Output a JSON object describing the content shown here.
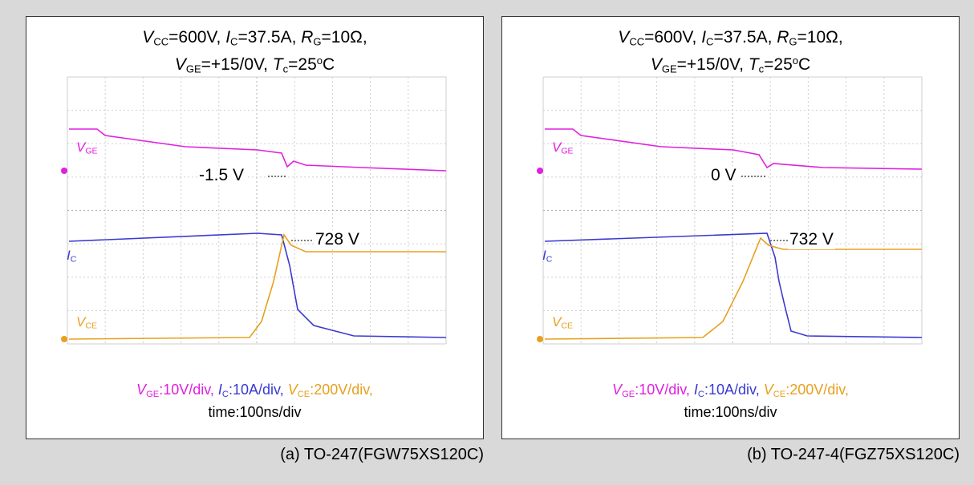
{
  "panels": [
    {
      "conditions": [
        [
          {
            "i": "V"
          },
          {
            "sub": "CC"
          },
          {
            "r": "=600V, "
          },
          {
            "i": "I"
          },
          {
            "sub": "C"
          },
          {
            "r": "=37.5A, "
          },
          {
            "i": "R"
          },
          {
            "sub": "G"
          },
          {
            "r": "=10Ω,"
          }
        ],
        [
          {
            "i": "V"
          },
          {
            "sub": "GE"
          },
          {
            "r": "=+15/0V, "
          },
          {
            "i": "T"
          },
          {
            "sub": "c"
          },
          {
            "r": "=25"
          },
          {
            "sup": "o"
          },
          {
            "r": "C"
          }
        ]
      ],
      "trace_labels": {
        "vge": [
          {
            "i": "V",
            "color": "#e020e0"
          },
          {
            "sub": "GE",
            "color": "#e020e0"
          }
        ],
        "ic": [
          {
            "i": "I",
            "color": "#3a3ad0"
          },
          {
            "sub": "C",
            "color": "#3a3ad0"
          }
        ],
        "vce": [
          {
            "i": "V",
            "color": "#e8a020"
          },
          {
            "sub": "CE",
            "color": "#e8a020"
          }
        ]
      },
      "annotations": [
        "-1.5 V",
        "728 V"
      ],
      "scale": [
        [
          {
            "i": "V",
            "color": "#e020e0"
          },
          {
            "sub": "GE",
            "color": "#e020e0"
          },
          {
            "r": ":10V/div, ",
            "color": "#e020e0"
          },
          {
            "i": "I",
            "color": "#3a3ad0"
          },
          {
            "sub": "C",
            "color": "#3a3ad0"
          },
          {
            "r": ":10A/div, ",
            "color": "#3a3ad0"
          },
          {
            "i": "V",
            "color": "#e8a020"
          },
          {
            "sub": "CE",
            "color": "#e8a020"
          },
          {
            "r": ":200V/div,",
            "color": "#e8a020"
          }
        ],
        [
          {
            "r": "time:100ns/div"
          }
        ]
      ],
      "caption": "(a) TO-247(FGW75XS120C)"
    },
    {
      "conditions": [
        [
          {
            "i": "V"
          },
          {
            "sub": "CC"
          },
          {
            "r": "=600V, "
          },
          {
            "i": "I"
          },
          {
            "sub": "C"
          },
          {
            "r": "=37.5A, "
          },
          {
            "i": "R"
          },
          {
            "sub": "G"
          },
          {
            "r": "=10Ω,"
          }
        ],
        [
          {
            "i": "V"
          },
          {
            "sub": "GE"
          },
          {
            "r": "=+15/0V, "
          },
          {
            "i": "T"
          },
          {
            "sub": "c"
          },
          {
            "r": "=25"
          },
          {
            "sup": "o"
          },
          {
            "r": "C"
          }
        ]
      ],
      "trace_labels": {
        "vge": [
          {
            "i": "V",
            "color": "#e020e0"
          },
          {
            "sub": "GE",
            "color": "#e020e0"
          }
        ],
        "ic": [
          {
            "i": "I",
            "color": "#3a3ad0"
          },
          {
            "sub": "C",
            "color": "#3a3ad0"
          }
        ],
        "vce": [
          {
            "i": "V",
            "color": "#e8a020"
          },
          {
            "sub": "CE",
            "color": "#e8a020"
          }
        ]
      },
      "annotations": [
        "0 V",
        "732 V"
      ],
      "scale": [
        [
          {
            "i": "V",
            "color": "#e020e0"
          },
          {
            "sub": "GE",
            "color": "#e020e0"
          },
          {
            "r": ":10V/div, ",
            "color": "#e020e0"
          },
          {
            "i": "I",
            "color": "#3a3ad0"
          },
          {
            "sub": "C",
            "color": "#3a3ad0"
          },
          {
            "r": ":10A/div, ",
            "color": "#3a3ad0"
          },
          {
            "i": "V",
            "color": "#e8a020"
          },
          {
            "sub": "CE",
            "color": "#e8a020"
          },
          {
            "r": ":200V/div,",
            "color": "#e8a020"
          }
        ],
        [
          {
            "r": "time:100ns/div"
          }
        ]
      ],
      "caption": "(b) TO-247-4(FGZ75XS120C)"
    }
  ]
}
